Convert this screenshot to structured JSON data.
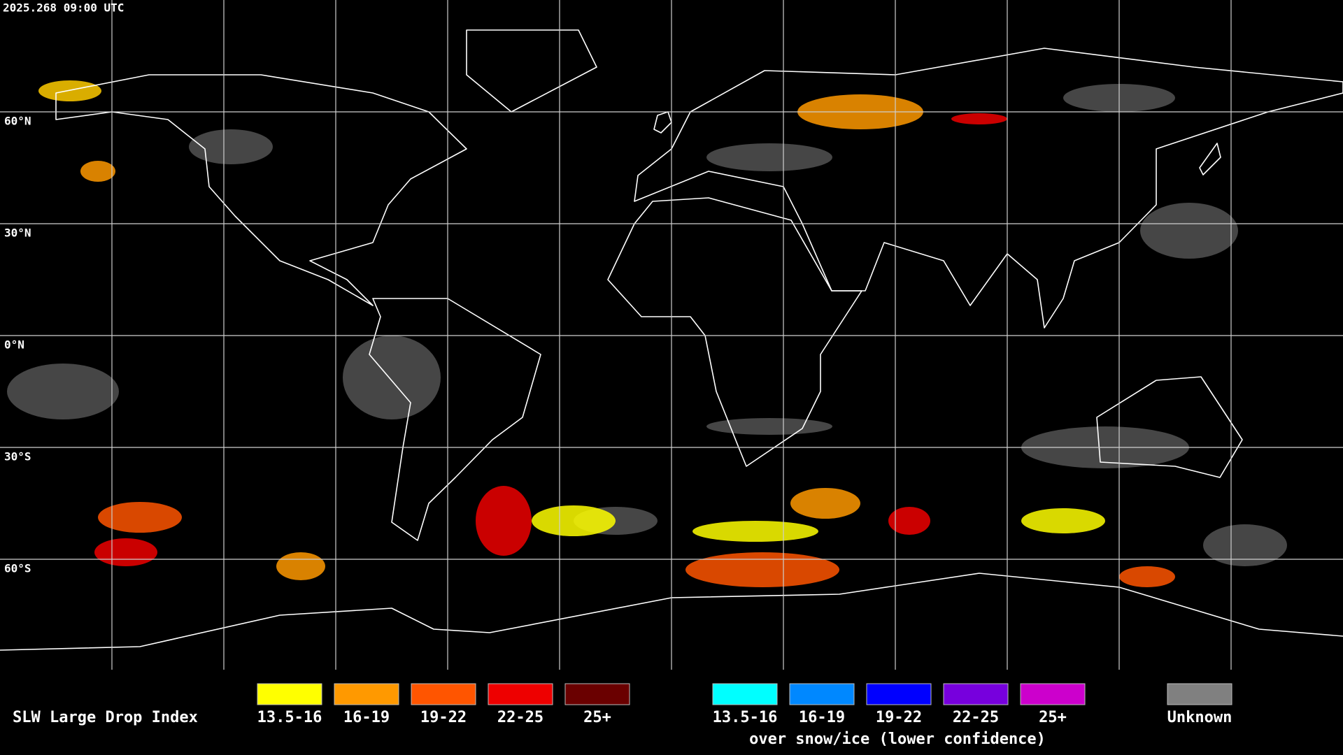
{
  "header": {
    "timestamp": "2025.268 09:00 UTC"
  },
  "grid": {
    "lat_labels": [
      "60°N",
      "30°N",
      "0°N",
      "30°S",
      "60°S"
    ]
  },
  "legend": {
    "title": "SLW Large Drop Index",
    "liquid": [
      {
        "label": "13.5-16",
        "color": "#ffff00"
      },
      {
        "label": "16-19",
        "color": "#ff9900"
      },
      {
        "label": "19-22",
        "color": "#ff5500"
      },
      {
        "label": "22-25",
        "color": "#ee0000"
      },
      {
        "label": "25+",
        "color": "#6a0000"
      }
    ],
    "ice": [
      {
        "label": "13.5-16",
        "color": "#00ffff"
      },
      {
        "label": "16-19",
        "color": "#0088ff"
      },
      {
        "label": "19-22",
        "color": "#0000ff"
      },
      {
        "label": "22-25",
        "color": "#7700dd"
      },
      {
        "label": "25+",
        "color": "#cc00cc"
      }
    ],
    "ice_caption": "over snow/ice (lower confidence)",
    "unknown": {
      "label": "Unknown",
      "color": "#808080"
    }
  }
}
